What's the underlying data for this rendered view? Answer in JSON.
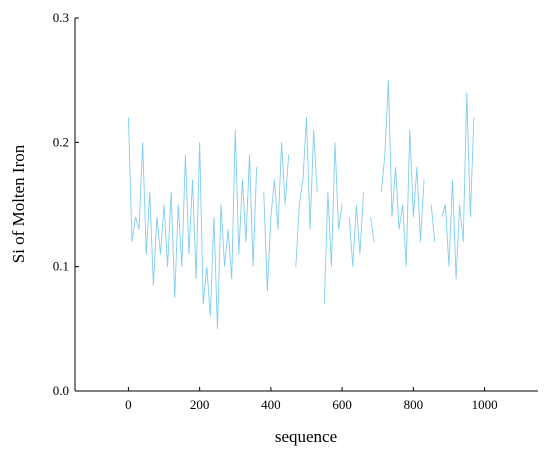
{
  "chart_data": {
    "type": "line",
    "xlabel": "sequence",
    "ylabel": "Si of Molten Iron",
    "xlim": [
      -150,
      1150
    ],
    "ylim": [
      0,
      0.3
    ],
    "xticks": [
      0,
      200,
      400,
      600,
      800,
      1000
    ],
    "yticks": [
      {
        "value": 0,
        "label": "0.0"
      },
      0.1,
      0.2,
      0.3
    ],
    "series": [
      {
        "name": "Si",
        "color": "#80cdf0",
        "x": [
          0,
          10,
          20,
          30,
          40,
          50,
          60,
          70,
          80,
          90,
          100,
          110,
          120,
          130,
          140,
          150,
          160,
          170,
          180,
          190,
          200,
          210,
          220,
          230,
          240,
          250,
          260,
          270,
          280,
          290,
          300,
          310,
          320,
          330,
          340,
          350,
          360,
          370,
          380,
          390,
          400,
          410,
          420,
          430,
          440,
          450,
          460,
          470,
          480,
          490,
          500,
          510,
          520,
          530,
          540,
          550,
          560,
          570,
          580,
          590,
          600,
          610,
          620,
          630,
          640,
          650,
          660,
          670,
          680,
          690,
          700,
          710,
          720,
          730,
          740,
          750,
          760,
          770,
          780,
          790,
          800,
          810,
          820,
          830,
          840,
          850,
          860,
          870,
          880,
          890,
          900,
          910,
          920,
          930,
          940,
          950,
          960,
          970
        ],
        "values": [
          0.22,
          0.12,
          0.14,
          0.13,
          0.2,
          0.11,
          0.16,
          0.085,
          0.14,
          0.11,
          0.15,
          0.1,
          0.16,
          0.075,
          0.15,
          0.1,
          0.19,
          0.11,
          0.17,
          0.09,
          0.2,
          0.07,
          0.1,
          0.06,
          0.14,
          0.05,
          0.15,
          0.1,
          0.13,
          0.09,
          0.21,
          0.11,
          0.17,
          0.12,
          0.19,
          0.1,
          0.18,
          null,
          0.16,
          0.08,
          0.14,
          0.17,
          0.13,
          0.2,
          0.15,
          0.19,
          null,
          0.1,
          0.15,
          0.17,
          0.22,
          0.13,
          0.21,
          0.16,
          null,
          0.07,
          0.16,
          0.1,
          0.2,
          0.13,
          0.15,
          null,
          0.14,
          0.1,
          0.15,
          0.11,
          0.16,
          null,
          0.14,
          0.12,
          null,
          0.16,
          0.19,
          0.25,
          0.14,
          0.18,
          0.13,
          0.15,
          0.1,
          0.21,
          0.14,
          0.18,
          0.12,
          0.17,
          null,
          0.15,
          0.12,
          null,
          0.14,
          0.15,
          0.1,
          0.17,
          0.09,
          0.15,
          0.12,
          0.24,
          0.14,
          0.22
        ]
      }
    ]
  }
}
